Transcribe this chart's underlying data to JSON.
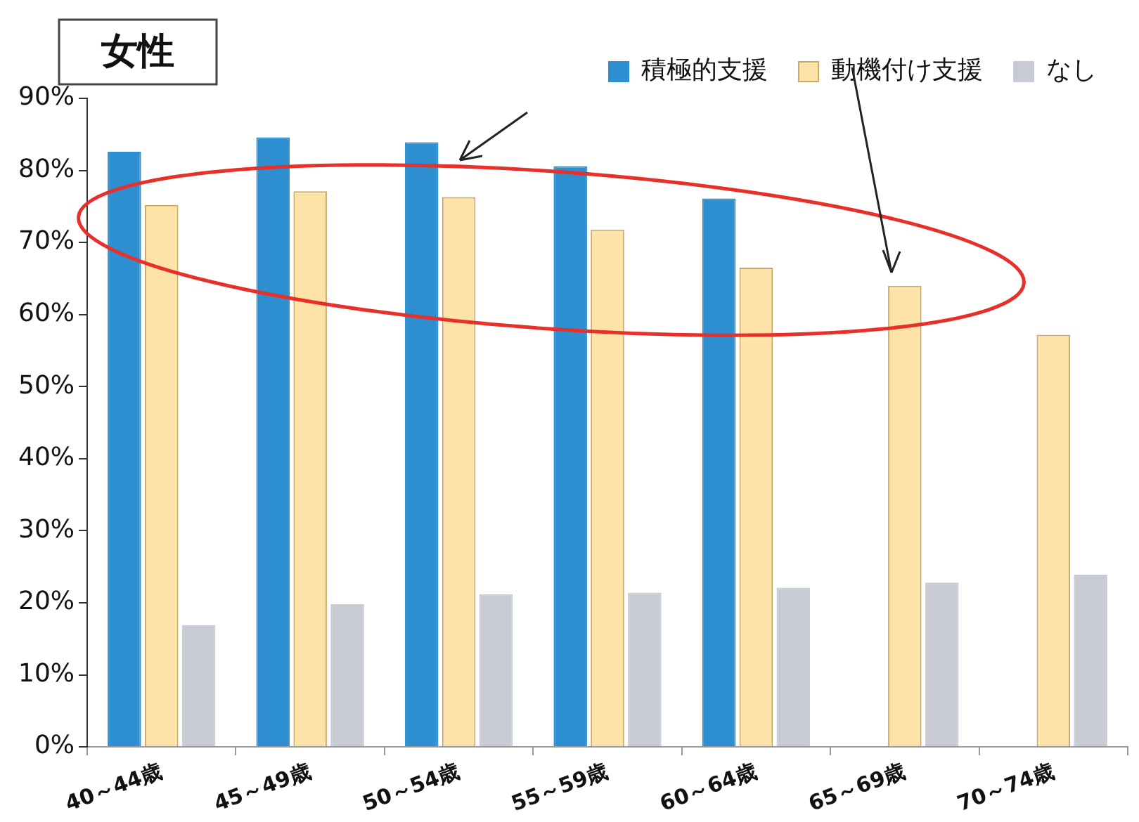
{
  "chart_data": {
    "type": "bar",
    "title": "女性",
    "categories": [
      "40～44歳",
      "45～49歳",
      "50～54歳",
      "55～59歳",
      "60～64歳",
      "65～69歳",
      "70～74歳"
    ],
    "series": [
      {
        "name": "積極的支援",
        "color": "#2e8fd0",
        "values": [
          82.6,
          84.6,
          83.9,
          80.6,
          76.1,
          null,
          null
        ]
      },
      {
        "name": "動機付け支援",
        "color": "#fde3a8",
        "values": [
          75.2,
          77.1,
          76.3,
          71.8,
          66.5,
          64.0,
          57.2
        ]
      },
      {
        "name": "なし",
        "color": "#c8cad4",
        "values": [
          16.9,
          19.8,
          21.2,
          21.4,
          22.1,
          22.8,
          23.9
        ]
      }
    ],
    "ylim": [
      0,
      90
    ],
    "yticks": [
      {
        "value": 0,
        "label": "0%"
      },
      {
        "value": 10,
        "label": "10%"
      },
      {
        "value": 20,
        "label": "20%"
      },
      {
        "value": 30,
        "label": "30%"
      },
      {
        "value": 40,
        "label": "40%"
      },
      {
        "value": 50,
        "label": "50%"
      },
      {
        "value": 60,
        "label": "60%"
      },
      {
        "value": 70,
        "label": "70%"
      },
      {
        "value": 80,
        "label": "80%"
      },
      {
        "value": 90,
        "label": "90%"
      }
    ],
    "grid": false,
    "legend": "top right"
  }
}
